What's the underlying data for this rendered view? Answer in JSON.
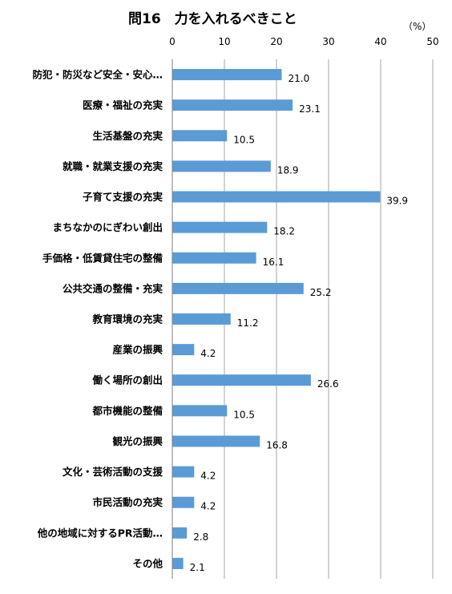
{
  "chart_data": {
    "type": "bar",
    "orientation": "horizontal",
    "title": "問16　力を入れるべきこと",
    "unit_label": "（%）",
    "xlim": [
      0,
      50
    ],
    "ticks": [
      0,
      10,
      20,
      30,
      40,
      50
    ],
    "grid": true,
    "bar_color": "#5B9BD5",
    "categories": [
      "防犯・防災など安全・安心…",
      "医療・福祉の充実",
      "生活基盤の充実",
      "就職・就業支援の充実",
      "子育て支援の充実",
      "まちなかのにぎわい創出",
      "手価格・低賃貸住宅の整備",
      "公共交通の整備・充実",
      "教育環境の充実",
      "産業の振興",
      "働く場所の創出",
      "都市機能の整備",
      "観光の振興",
      "文化・芸術活動の支援",
      "市民活動の充実",
      "他の地域に対するPR活動…",
      "その他"
    ],
    "values": [
      21.0,
      23.1,
      10.5,
      18.9,
      39.9,
      18.2,
      16.1,
      25.2,
      11.2,
      4.2,
      26.6,
      10.5,
      16.8,
      4.2,
      4.2,
      2.8,
      2.1
    ],
    "value_labels": [
      "21.0",
      "23.1",
      "10.5",
      "18.9",
      "39.9",
      "18.2",
      "16.1",
      "25.2",
      "11.2",
      "4.2",
      "26.6",
      "10.5",
      "16.8",
      "4.2",
      "4.2",
      "2.8",
      "2.1"
    ]
  }
}
